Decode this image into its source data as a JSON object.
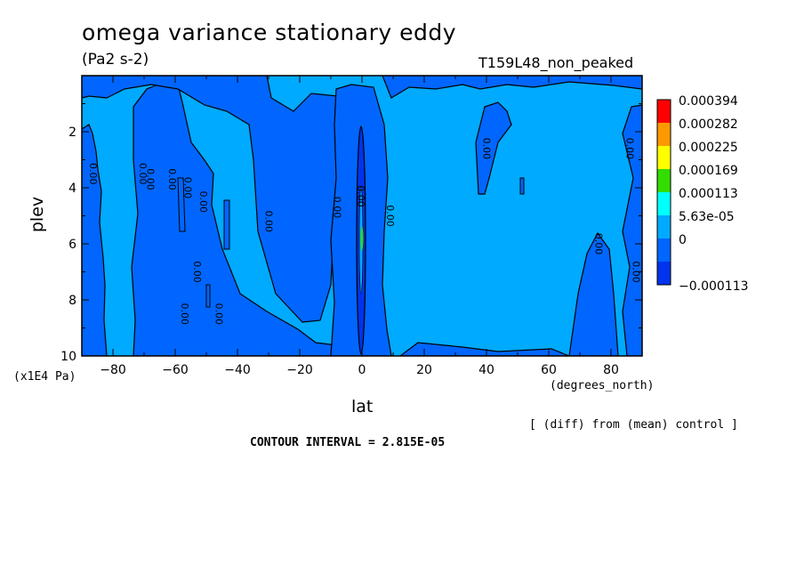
{
  "chart_data": {
    "type": "heatmap",
    "title": "omega variance stationary eddy",
    "units": "(Pa2 s-2)",
    "experiment": "T159L48_non_peaked",
    "xlabel": "lat",
    "xunits": "(degrees_north)",
    "ylabel": "plev",
    "yscale_label": "(x1E4 Pa)",
    "xlim": [
      -90,
      90
    ],
    "ylim": [
      10,
      0
    ],
    "xticks": [
      "-80",
      "-60",
      "-40",
      "-20",
      "0",
      "20",
      "40",
      "60",
      "80"
    ],
    "yticks": [
      "2",
      "4",
      "6",
      "8",
      "10"
    ],
    "legend_levels": [
      "0.000394",
      "0.000282",
      "0.000225",
      "0.000169",
      "0.000113",
      "5.63e-05",
      "0",
      "-0.000113"
    ],
    "legend_colors": [
      "#ff0000",
      "#ff9900",
      "#ffff00",
      "#33dd00",
      "#00ffff",
      "#00aaff",
      "#0066ff",
      "#0033ee"
    ],
    "contour_label": "0.00",
    "contour_interval_text": "CONTOUR INTERVAL = 2.815E-05",
    "diff_note": "[ (diff) from (mean) control ]",
    "regions": [
      {
        "lat": [
          -90,
          -88
        ],
        "value": "negative"
      },
      {
        "lat": [
          -88,
          -72
        ],
        "value": "near-zero positive"
      },
      {
        "lat": [
          -72,
          -60
        ],
        "value": "negative"
      },
      {
        "lat": [
          -60,
          -8
        ],
        "value": "near-zero positive"
      },
      {
        "lat": [
          -8,
          8
        ],
        "value": "negative with strong equatorial core"
      },
      {
        "lat": [
          8,
          85
        ],
        "value": "near-zero positive"
      },
      {
        "lat": [
          85,
          90
        ],
        "value": "negative"
      }
    ]
  }
}
